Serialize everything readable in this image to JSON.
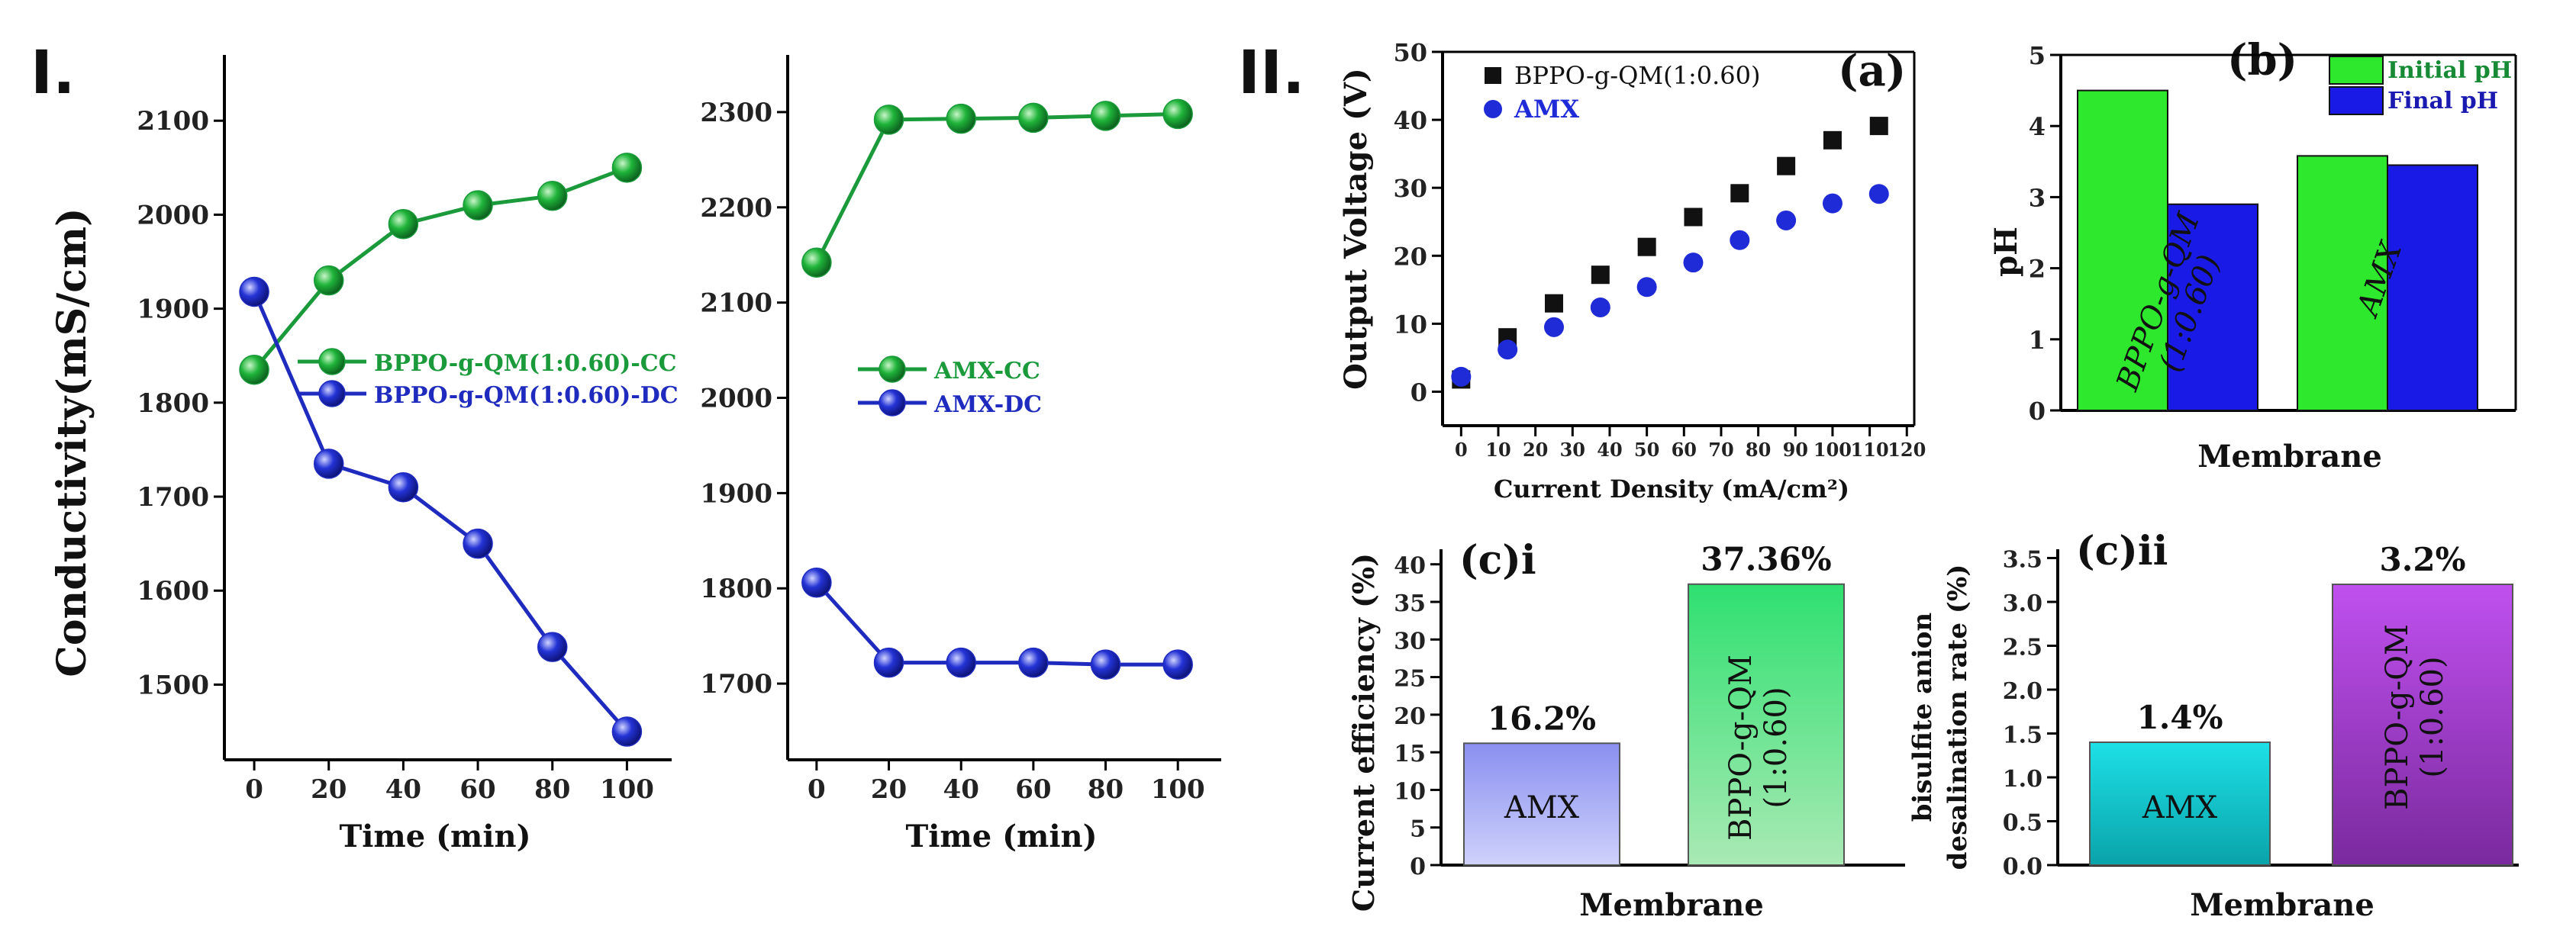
{
  "labels": {
    "panel_I": "I.",
    "panel_II": "II."
  },
  "chart_data": [
    {
      "id": "I-left",
      "type": "line",
      "title": "",
      "xlabel": "Time  (min)",
      "ylabel": "Conductivity(mS/cm)",
      "xlim": [
        -8,
        112
      ],
      "ylim": [
        1420,
        2170
      ],
      "xticks": [
        0,
        20,
        40,
        60,
        80,
        100
      ],
      "yticks": [
        1500,
        1600,
        1700,
        1800,
        1900,
        2000,
        2100
      ],
      "legend_position": "center-right",
      "series": [
        {
          "name": "BPPO-g-QM(1:0.60)-CC",
          "color": "#1a9a3a",
          "x": [
            0,
            20,
            40,
            60,
            80,
            100
          ],
          "y": [
            1835,
            1930,
            1990,
            2010,
            2020,
            2050
          ]
        },
        {
          "name": "BPPO-g-QM(1:0.60)-DC",
          "color": "#1f2bbf",
          "x": [
            0,
            20,
            40,
            60,
            80,
            100
          ],
          "y": [
            1918,
            1735,
            1710,
            1650,
            1540,
            1450
          ]
        }
      ]
    },
    {
      "id": "I-right",
      "type": "line",
      "title": "",
      "xlabel": "Time  (min)",
      "ylabel": "",
      "xlim": [
        -8,
        112
      ],
      "ylim": [
        1620,
        2360
      ],
      "xticks": [
        0,
        20,
        40,
        60,
        80,
        100
      ],
      "yticks": [
        1700,
        1800,
        1900,
        2000,
        2100,
        2200,
        2300
      ],
      "legend_position": "center",
      "series": [
        {
          "name": "AMX-CC",
          "color": "#1a9a3a",
          "x": [
            0,
            20,
            40,
            60,
            80,
            100
          ],
          "y": [
            2142,
            2292,
            2293,
            2294,
            2296,
            2298
          ]
        },
        {
          "name": "AMX-DC",
          "color": "#1f2bbf",
          "x": [
            0,
            20,
            40,
            60,
            80,
            100
          ],
          "y": [
            1806,
            1722,
            1722,
            1722,
            1720,
            1720
          ]
        }
      ]
    },
    {
      "id": "II-a",
      "type": "scatter",
      "panel_label": "(a)",
      "xlabel": "Current Density (mA/cm²)",
      "ylabel": "Output Voltage (V)",
      "xlim": [
        -5,
        122
      ],
      "ylim": [
        -5,
        50
      ],
      "xticks": [
        0,
        10,
        20,
        30,
        40,
        50,
        60,
        70,
        80,
        90,
        100,
        110,
        120
      ],
      "yticks": [
        0,
        10,
        20,
        30,
        40,
        50
      ],
      "legend_position": "top-left",
      "series": [
        {
          "name": "BPPO-g-QM(1:0.60)",
          "color": "#111111",
          "marker": "square",
          "x": [
            0,
            12.5,
            25,
            37.5,
            50,
            62.5,
            75,
            87.5,
            100,
            112.5
          ],
          "y": [
            1.8,
            8,
            13,
            17.2,
            21.3,
            25.7,
            29.2,
            33.2,
            37,
            39.1
          ]
        },
        {
          "name": "AMX",
          "color": "#1f2bd6",
          "marker": "circle",
          "x": [
            0,
            12.5,
            25,
            37.5,
            50,
            62.5,
            75,
            87.5,
            100,
            112.5
          ],
          "y": [
            2.2,
            6.2,
            9.5,
            12.4,
            15.4,
            19,
            22.3,
            25.2,
            27.7,
            29.1
          ]
        }
      ]
    },
    {
      "id": "II-b",
      "type": "bar",
      "panel_label": "(b)",
      "xlabel": "Membrane",
      "ylabel": "pH",
      "ylim": [
        0,
        5
      ],
      "yticks": [
        0,
        1,
        2,
        3,
        4,
        5
      ],
      "categories": [
        "BPPO-g-QM\n(1:0.60)",
        "AMX"
      ],
      "legend_position": "top-right",
      "series": [
        {
          "name": "Initial pH",
          "color": "#2ee82e",
          "values": [
            4.5,
            3.58
          ]
        },
        {
          "name": "Final pH",
          "color": "#1a1ae6",
          "values": [
            2.9,
            3.45
          ]
        }
      ]
    },
    {
      "id": "II-c-i",
      "type": "bar",
      "panel_label": "(c)i",
      "xlabel": "Membrane",
      "ylabel": "Current  efficiency (%)",
      "ylim": [
        0,
        42
      ],
      "yticks": [
        0,
        5,
        10,
        15,
        20,
        25,
        30,
        35,
        40
      ],
      "categories": [
        "AMX",
        "BPPO-g-QM\n(1:0.60)"
      ],
      "values": [
        16.2,
        37.36
      ],
      "value_labels": [
        "16.2%",
        "37.36%"
      ],
      "colors": [
        "#8a8ff0",
        "#3fe07a"
      ]
    },
    {
      "id": "II-c-ii",
      "type": "bar",
      "panel_label": "(c)ii",
      "xlabel": "Membrane",
      "ylabel": [
        "bisulfite anion",
        "desalination rate (%)"
      ],
      "ylim": [
        0,
        3.6
      ],
      "yticks": [
        0.0,
        0.5,
        1.0,
        1.5,
        2.0,
        2.5,
        3.0,
        3.5
      ],
      "categories": [
        "AMX",
        "BPPO-g-QM\n(1:0.60)"
      ],
      "values": [
        1.4,
        3.2
      ],
      "value_labels": [
        "1.4%",
        "3.2%"
      ],
      "colors": [
        "#1de0e6",
        "#b040e6"
      ]
    }
  ]
}
